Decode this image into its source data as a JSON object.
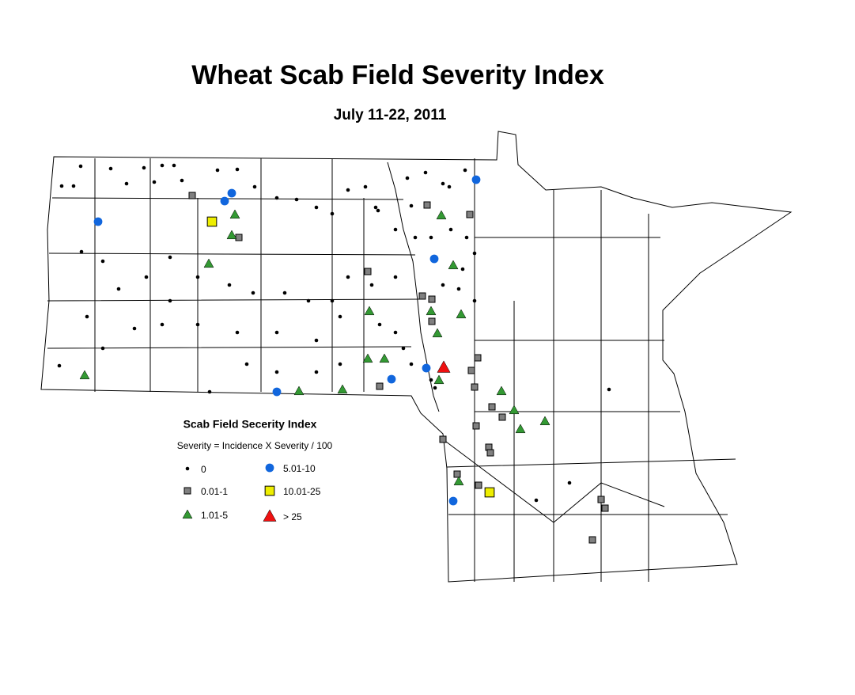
{
  "title": "Wheat Scab Field Severity Index",
  "subtitle": "July 11-22, 2011",
  "legend": {
    "title": "Scab Field Secerity Index",
    "formula": "Severity = Incidence X Severity / 100",
    "items": [
      {
        "label": "0",
        "shape": "dot",
        "color": "#000000"
      },
      {
        "label": "0.01-1",
        "shape": "square",
        "color": "#808080"
      },
      {
        "label": "1.01-5",
        "shape": "triangle",
        "color": "#339933"
      },
      {
        "label": "5.01-10",
        "shape": "circle",
        "color": "#1166dd"
      },
      {
        "label": "10.01-25",
        "shape": "square",
        "color": "#eeee00"
      },
      {
        "label": "> 25",
        "shape": "triangle",
        "color": "#ee1111"
      }
    ]
  }
}
